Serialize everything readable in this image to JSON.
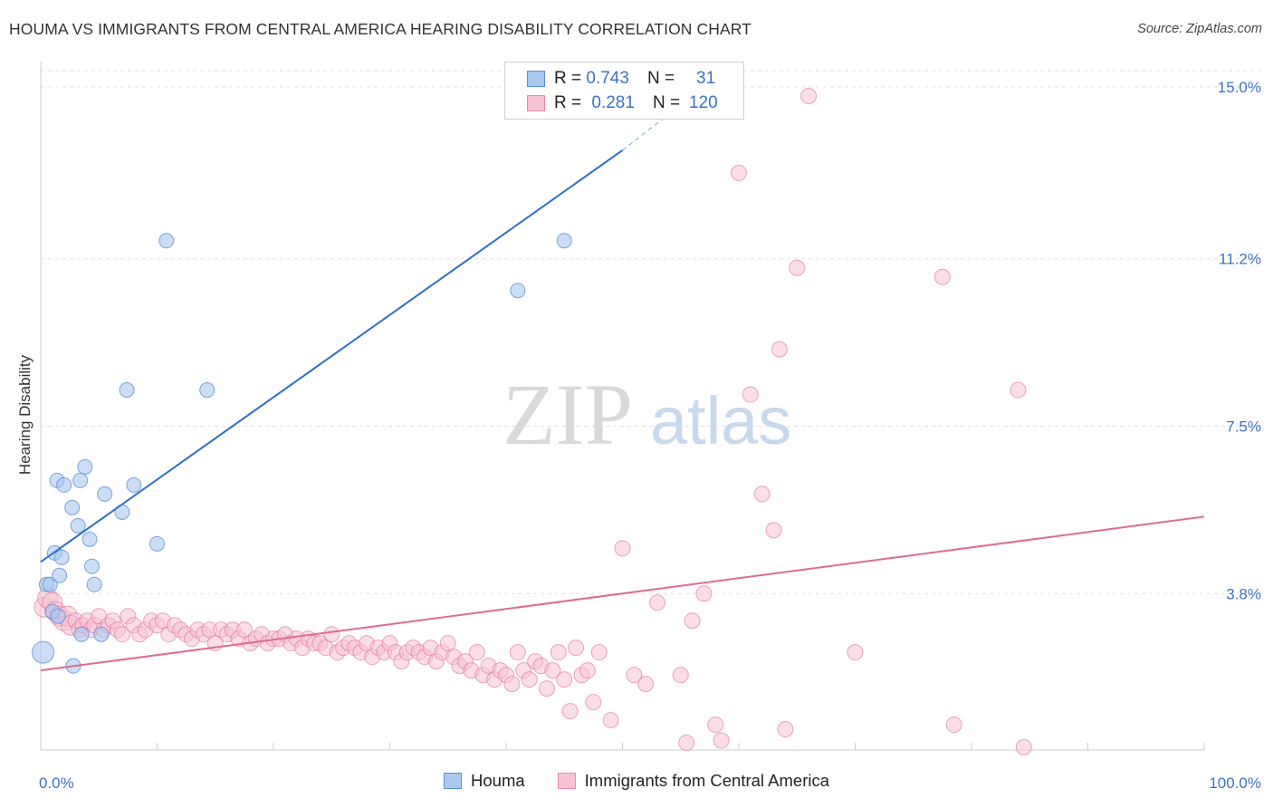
{
  "header": {
    "title": "HOUMA VS IMMIGRANTS FROM CENTRAL AMERICA HEARING DISABILITY CORRELATION CHART",
    "source": "Source: ZipAtlas.com"
  },
  "watermark": {
    "zip": "ZIP",
    "atlas": "atlas"
  },
  "legend": {
    "rows": [
      {
        "r_label": "R =",
        "r_value": "0.743",
        "n_label": "N =",
        "n_value": "31",
        "color": "#a9c8f0",
        "border": "#5b8fd6"
      },
      {
        "r_label": "R =",
        "r_value": "0.281",
        "n_label": "N =",
        "n_value": "120",
        "color": "#f7c3d3",
        "border": "#e98aaa"
      }
    ]
  },
  "bottom_legend": [
    {
      "label": "Houma",
      "color": "#a9c8f0",
      "border": "#5b8fd6"
    },
    {
      "label": "Immigrants from Central America",
      "color": "#f7c3d3",
      "border": "#e98aaa"
    }
  ],
  "chart_data": {
    "type": "scatter",
    "title": "HOUMA VS IMMIGRANTS FROM CENTRAL AMERICA HEARING DISABILITY CORRELATION CHART",
    "xlabel": "",
    "ylabel": "Hearing Disability",
    "xlim": [
      0,
      100
    ],
    "ylim": [
      0,
      15
    ],
    "x_tick_labels": [
      "0.0%",
      "100.0%"
    ],
    "y_ticks": [
      3.8,
      7.5,
      11.2,
      15.0
    ],
    "y_tick_labels": [
      "3.8%",
      "7.5%",
      "11.2%",
      "15.0%"
    ],
    "grid": true,
    "colors": {
      "houma": "#5b8fd6",
      "houma_fill": "#a9c8f0",
      "imm": "#e06a94",
      "imm_fill": "#f7c3d3",
      "axis_label": "#3b73c4"
    },
    "series": [
      {
        "name": "Houma",
        "regression": {
          "x": [
            0,
            50
          ],
          "y": [
            4.5,
            13.6
          ],
          "dashed_to": [
            55,
            14.6
          ]
        },
        "points": [
          [
            0.2,
            2.5
          ],
          [
            0.5,
            4.0
          ],
          [
            0.8,
            4.0
          ],
          [
            1.0,
            3.4
          ],
          [
            1.2,
            4.7
          ],
          [
            1.5,
            3.3
          ],
          [
            1.4,
            6.3
          ],
          [
            1.6,
            4.2
          ],
          [
            1.8,
            4.6
          ],
          [
            2.0,
            6.2
          ],
          [
            2.7,
            5.7
          ],
          [
            2.8,
            2.2
          ],
          [
            3.2,
            5.3
          ],
          [
            3.4,
            6.3
          ],
          [
            3.5,
            2.9
          ],
          [
            3.8,
            6.6
          ],
          [
            4.2,
            5.0
          ],
          [
            4.4,
            4.4
          ],
          [
            4.6,
            4.0
          ],
          [
            5.2,
            2.9
          ],
          [
            5.5,
            6.0
          ],
          [
            7.0,
            5.6
          ],
          [
            7.4,
            8.3
          ],
          [
            8.0,
            6.2
          ],
          [
            10.0,
            4.9
          ],
          [
            10.8,
            11.6
          ],
          [
            14.3,
            8.3
          ],
          [
            41.0,
            10.5
          ],
          [
            45.0,
            11.6
          ]
        ],
        "sizes_note": "two large points near origin"
      },
      {
        "name": "Immigrants from Central America",
        "regression": {
          "x": [
            0,
            100
          ],
          "y": [
            2.1,
            5.5
          ]
        },
        "points": [
          [
            0.3,
            3.5
          ],
          [
            0.6,
            3.7
          ],
          [
            1.0,
            3.6
          ],
          [
            1.3,
            3.4
          ],
          [
            1.6,
            3.3
          ],
          [
            2.0,
            3.2
          ],
          [
            2.3,
            3.3
          ],
          [
            2.6,
            3.1
          ],
          [
            3.0,
            3.2
          ],
          [
            3.3,
            3.0
          ],
          [
            3.6,
            3.1
          ],
          [
            4.0,
            3.2
          ],
          [
            4.3,
            3.0
          ],
          [
            4.6,
            3.1
          ],
          [
            5.0,
            3.3
          ],
          [
            5.4,
            3.0
          ],
          [
            5.8,
            3.1
          ],
          [
            6.2,
            3.2
          ],
          [
            6.6,
            3.0
          ],
          [
            7.0,
            2.9
          ],
          [
            7.5,
            3.3
          ],
          [
            8.0,
            3.1
          ],
          [
            8.5,
            2.9
          ],
          [
            9.0,
            3.0
          ],
          [
            9.5,
            3.2
          ],
          [
            10.0,
            3.1
          ],
          [
            10.5,
            3.2
          ],
          [
            11.0,
            2.9
          ],
          [
            11.5,
            3.1
          ],
          [
            12.0,
            3.0
          ],
          [
            12.5,
            2.9
          ],
          [
            13.0,
            2.8
          ],
          [
            13.5,
            3.0
          ],
          [
            14.0,
            2.9
          ],
          [
            14.5,
            3.0
          ],
          [
            15.0,
            2.7
          ],
          [
            15.5,
            3.0
          ],
          [
            16.0,
            2.9
          ],
          [
            16.5,
            3.0
          ],
          [
            17.0,
            2.8
          ],
          [
            17.5,
            3.0
          ],
          [
            18.0,
            2.7
          ],
          [
            18.5,
            2.8
          ],
          [
            19.0,
            2.9
          ],
          [
            19.5,
            2.7
          ],
          [
            20.0,
            2.8
          ],
          [
            20.5,
            2.8
          ],
          [
            21.0,
            2.9
          ],
          [
            21.5,
            2.7
          ],
          [
            22.0,
            2.8
          ],
          [
            22.5,
            2.6
          ],
          [
            23.0,
            2.8
          ],
          [
            23.5,
            2.7
          ],
          [
            24.0,
            2.7
          ],
          [
            24.5,
            2.6
          ],
          [
            25.0,
            2.9
          ],
          [
            25.5,
            2.5
          ],
          [
            26.0,
            2.6
          ],
          [
            26.5,
            2.7
          ],
          [
            27.0,
            2.6
          ],
          [
            27.5,
            2.5
          ],
          [
            28.0,
            2.7
          ],
          [
            28.5,
            2.4
          ],
          [
            29.0,
            2.6
          ],
          [
            29.5,
            2.5
          ],
          [
            30.0,
            2.7
          ],
          [
            30.5,
            2.5
          ],
          [
            31.0,
            2.3
          ],
          [
            31.5,
            2.5
          ],
          [
            32.0,
            2.6
          ],
          [
            32.5,
            2.5
          ],
          [
            33.0,
            2.4
          ],
          [
            33.5,
            2.6
          ],
          [
            34.0,
            2.3
          ],
          [
            34.5,
            2.5
          ],
          [
            35.0,
            2.7
          ],
          [
            35.5,
            2.4
          ],
          [
            36.0,
            2.2
          ],
          [
            36.5,
            2.3
          ],
          [
            37.0,
            2.1
          ],
          [
            37.5,
            2.5
          ],
          [
            38.0,
            2.0
          ],
          [
            38.5,
            2.2
          ],
          [
            39.0,
            1.9
          ],
          [
            39.5,
            2.1
          ],
          [
            40.0,
            2.0
          ],
          [
            40.5,
            1.8
          ],
          [
            41.0,
            2.5
          ],
          [
            41.5,
            2.1
          ],
          [
            42.0,
            1.9
          ],
          [
            42.5,
            2.3
          ],
          [
            43.0,
            2.2
          ],
          [
            43.5,
            1.7
          ],
          [
            44.0,
            2.1
          ],
          [
            44.5,
            2.5
          ],
          [
            45.0,
            1.9
          ],
          [
            45.5,
            1.2
          ],
          [
            46.0,
            2.6
          ],
          [
            46.5,
            2.0
          ],
          [
            47.0,
            2.1
          ],
          [
            47.5,
            1.4
          ],
          [
            48.0,
            2.5
          ],
          [
            49.0,
            1.0
          ],
          [
            50.0,
            4.8
          ],
          [
            51.0,
            2.0
          ],
          [
            52.0,
            1.8
          ],
          [
            53.0,
            3.6
          ],
          [
            55.0,
            2.0
          ],
          [
            56.0,
            3.2
          ],
          [
            57.0,
            3.8
          ],
          [
            55.5,
            0.5
          ],
          [
            58.0,
            0.9
          ],
          [
            58.5,
            0.55
          ],
          [
            60.0,
            13.1
          ],
          [
            61.0,
            8.2
          ],
          [
            62.0,
            6.0
          ],
          [
            63.0,
            5.2
          ],
          [
            63.5,
            9.2
          ],
          [
            64.0,
            0.8
          ],
          [
            65.0,
            11.0
          ],
          [
            66.0,
            14.8
          ],
          [
            70.0,
            2.5
          ],
          [
            77.5,
            10.8
          ],
          [
            78.5,
            0.9
          ],
          [
            84.0,
            8.3
          ],
          [
            84.5,
            0.4
          ]
        ]
      }
    ]
  }
}
